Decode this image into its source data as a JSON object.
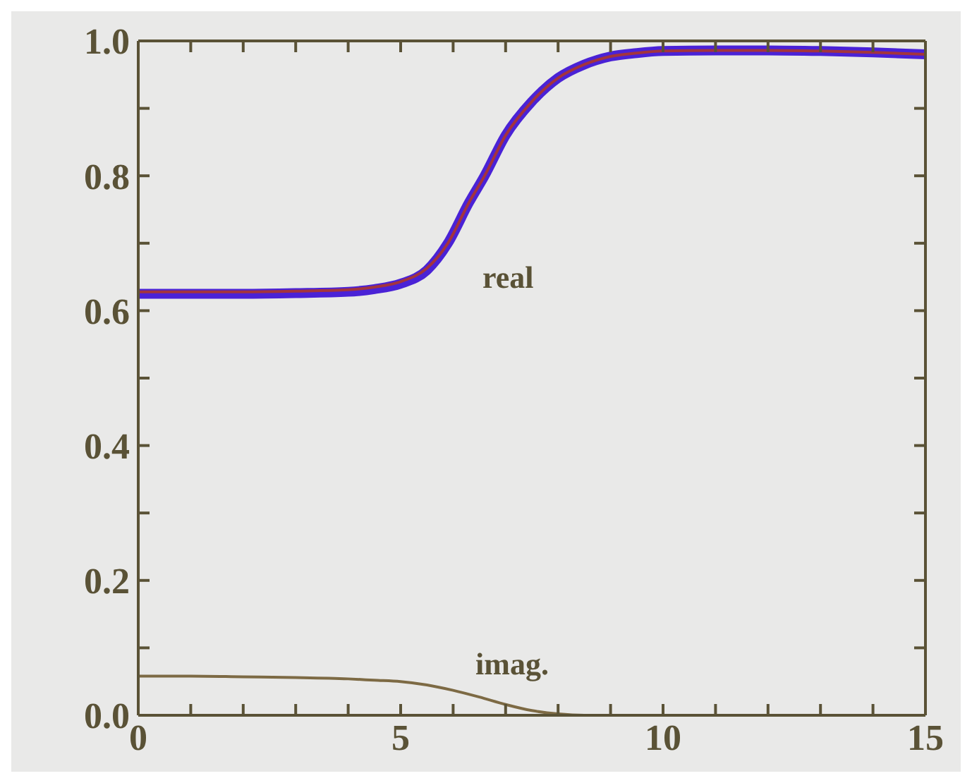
{
  "chart_data": {
    "type": "line",
    "xlim": [
      0,
      15
    ],
    "ylim": [
      0,
      1
    ],
    "xticks": [
      0,
      {
        "value": 1,
        "label": null
      },
      {
        "value": 2,
        "label": null
      },
      {
        "value": 3,
        "label": null
      },
      {
        "value": 4,
        "label": null
      },
      5,
      {
        "value": 6,
        "label": null
      },
      {
        "value": 7,
        "label": null
      },
      {
        "value": 8,
        "label": null
      },
      {
        "value": 9,
        "label": null
      },
      10,
      {
        "value": 11,
        "label": null
      },
      {
        "value": 12,
        "label": null
      },
      {
        "value": 13,
        "label": null
      },
      {
        "value": 14,
        "label": null
      },
      15
    ],
    "yticks": [
      {
        "value": 0,
        "label": "0.0"
      },
      {
        "value": 0.1,
        "label": null
      },
      0.2,
      {
        "value": 0.3,
        "label": null
      },
      0.4,
      {
        "value": 0.5,
        "label": null
      },
      0.6,
      {
        "value": 0.7,
        "label": null
      },
      0.8,
      {
        "value": 0.9,
        "label": null
      },
      {
        "value": 1,
        "label": "1.0"
      }
    ],
    "series": [
      {
        "color": "#4a22d6",
        "x": [
          0,
          1,
          2,
          3,
          4,
          4.5,
          5,
          5.5,
          5.9,
          6.3,
          6.6,
          7,
          7.5,
          8,
          8.5,
          9,
          9.5,
          10,
          11,
          12,
          13,
          14,
          15
        ],
        "values": [
          0.625,
          0.625,
          0.625,
          0.626,
          0.628,
          0.632,
          0.64,
          0.66,
          0.7,
          0.76,
          0.8,
          0.86,
          0.91,
          0.945,
          0.965,
          0.977,
          0.982,
          0.985,
          0.986,
          0.986,
          0.985,
          0.983,
          0.98
        ]
      },
      {
        "color": "#a3343e",
        "x": [
          0,
          1,
          2,
          3,
          4,
          4.5,
          5,
          5.5,
          5.9,
          6.3,
          6.6,
          7,
          7.5,
          8,
          8.5,
          9,
          9.5,
          10,
          11,
          12,
          13,
          14,
          15
        ],
        "values": [
          0.628,
          0.628,
          0.628,
          0.629,
          0.631,
          0.635,
          0.643,
          0.663,
          0.7,
          0.76,
          0.8,
          0.86,
          0.91,
          0.945,
          0.965,
          0.977,
          0.982,
          0.985,
          0.986,
          0.986,
          0.985,
          0.983,
          0.98
        ]
      },
      {
        "color": "#7d6a44",
        "x": [
          0,
          1,
          2,
          3,
          4,
          4.5,
          5,
          5.5,
          6,
          6.5,
          7,
          7.5,
          8,
          8.5,
          9,
          10,
          11,
          12,
          13,
          14,
          15
        ],
        "values": [
          0.058,
          0.058,
          0.057,
          0.056,
          0.054,
          0.052,
          0.05,
          0.045,
          0.037,
          0.027,
          0.016,
          0.007,
          0.002,
          0.0,
          0.0,
          0.0,
          0.0,
          0.0,
          0.0,
          0.0,
          0.0
        ]
      }
    ],
    "annotations": [
      "real",
      "imag."
    ]
  }
}
